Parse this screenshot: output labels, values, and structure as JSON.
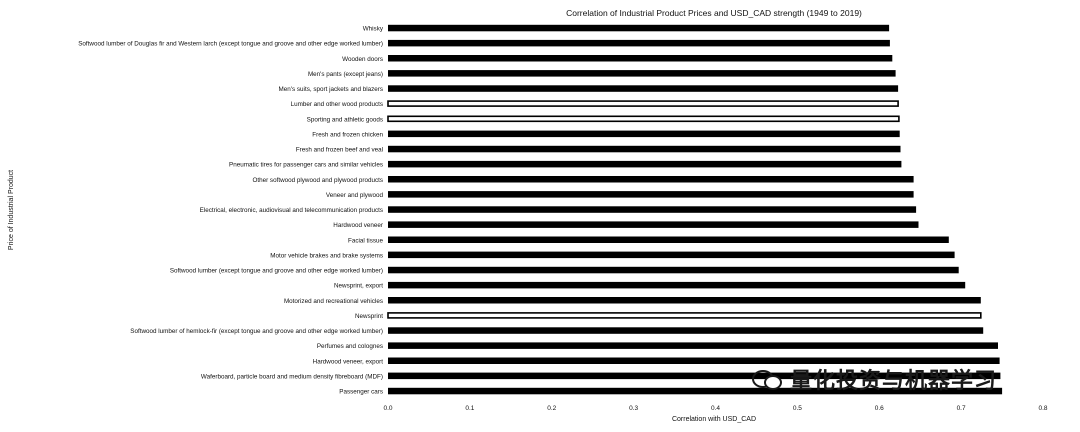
{
  "chart_data": {
    "type": "bar",
    "orientation": "horizontal",
    "title": "Correlation of Industrial Product Prices and USD_CAD strength (1949 to 2019)",
    "xlabel": "Correlation with USD_CAD",
    "ylabel": "Price of Industrial Product",
    "xlim": [
      0.0,
      0.8
    ],
    "xticks": [
      "0.0",
      "0.1",
      "0.2",
      "0.3",
      "0.4",
      "0.5",
      "0.6",
      "0.7",
      "0.8"
    ],
    "grid": false,
    "categories": [
      "Whisky",
      "Softwood lumber of Douglas fir and Western larch (except tongue and groove and other edge worked lumber)",
      "Wooden doors",
      "Men's pants (except jeans)",
      "Men's suits, sport jackets and blazers",
      "Lumber and other wood products",
      "Sporting and athletic goods",
      "Fresh and frozen chicken",
      "Fresh and frozen beef and veal",
      "Pneumatic tires for passenger cars and similar vehicles",
      "Other softwood plywood and plywood products",
      "Veneer and plywood",
      "Electrical, electronic, audiovisual and telecommunication products",
      "Hardwood veneer",
      "Facial tissue",
      "Motor vehicle brakes and brake systems",
      "Softwood lumber (except tongue and groove and other edge worked lumber)",
      "Newsprint, export",
      "Motorized and recreational vehicles",
      "Newsprint",
      "Softwood lumber of hemlock-fir (except tongue and groove and other edge worked lumber)",
      "Perfumes and colognes",
      "Hardwood veneer, export",
      "Waferboard, particle board and medium density fibreboard (MDF)",
      "Passenger cars"
    ],
    "values": [
      0.612,
      0.613,
      0.616,
      0.62,
      0.623,
      0.623,
      0.624,
      0.625,
      0.626,
      0.627,
      0.642,
      0.642,
      0.645,
      0.648,
      0.685,
      0.692,
      0.697,
      0.705,
      0.724,
      0.724,
      0.727,
      0.745,
      0.747,
      0.748,
      0.75
    ],
    "bar_color": "#000000",
    "outlined_rows": [
      "Lumber and other wood products",
      "Sporting and athletic goods",
      "Newsprint"
    ]
  },
  "watermark": {
    "text": "量化投资与机器学习",
    "icon": "wechat-icon"
  }
}
